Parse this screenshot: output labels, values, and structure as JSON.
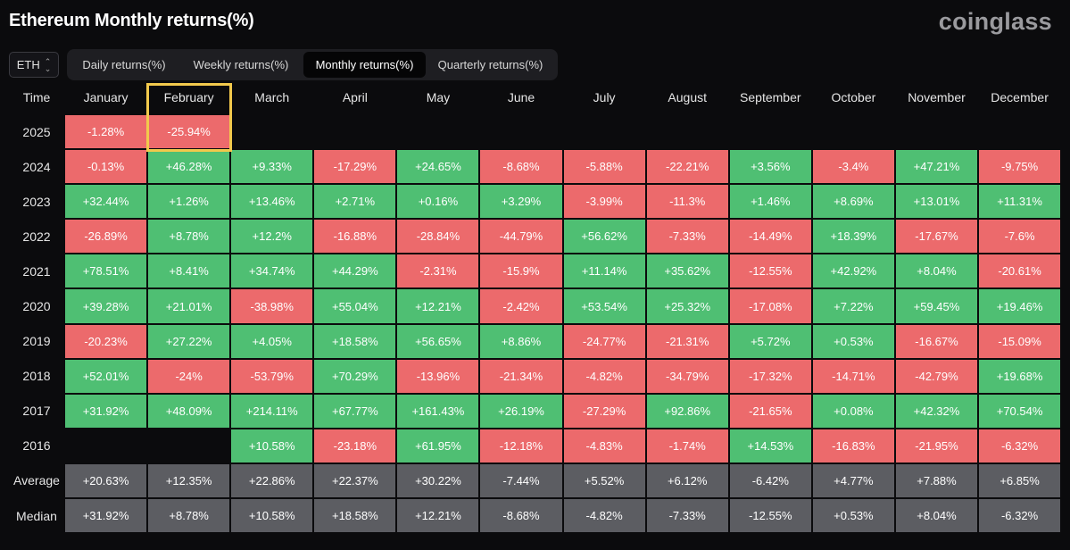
{
  "header": {
    "title": "Ethereum Monthly returns(%)",
    "brand": "coinglass"
  },
  "asset_select": {
    "value": "ETH"
  },
  "tabs": [
    {
      "label": "Daily returns(%)",
      "active": false
    },
    {
      "label": "Weekly returns(%)",
      "active": false
    },
    {
      "label": "Monthly returns(%)",
      "active": true
    },
    {
      "label": "Quarterly returns(%)",
      "active": false
    }
  ],
  "table": {
    "corner": "Time",
    "columns": [
      "January",
      "February",
      "March",
      "April",
      "May",
      "June",
      "July",
      "August",
      "September",
      "October",
      "November",
      "December"
    ],
    "rows": [
      {
        "label": "2025",
        "cells": [
          "-1.28%",
          "-25.94%",
          "",
          "",
          "",
          "",
          "",
          "",
          "",
          "",
          "",
          ""
        ]
      },
      {
        "label": "2024",
        "cells": [
          "-0.13%",
          "+46.28%",
          "+9.33%",
          "-17.29%",
          "+24.65%",
          "-8.68%",
          "-5.88%",
          "-22.21%",
          "+3.56%",
          "-3.4%",
          "+47.21%",
          "-9.75%"
        ]
      },
      {
        "label": "2023",
        "cells": [
          "+32.44%",
          "+1.26%",
          "+13.46%",
          "+2.71%",
          "+0.16%",
          "+3.29%",
          "-3.99%",
          "-11.3%",
          "+1.46%",
          "+8.69%",
          "+13.01%",
          "+11.31%"
        ]
      },
      {
        "label": "2022",
        "cells": [
          "-26.89%",
          "+8.78%",
          "+12.2%",
          "-16.88%",
          "-28.84%",
          "-44.79%",
          "+56.62%",
          "-7.33%",
          "-14.49%",
          "+18.39%",
          "-17.67%",
          "-7.6%"
        ]
      },
      {
        "label": "2021",
        "cells": [
          "+78.51%",
          "+8.41%",
          "+34.74%",
          "+44.29%",
          "-2.31%",
          "-15.9%",
          "+11.14%",
          "+35.62%",
          "-12.55%",
          "+42.92%",
          "+8.04%",
          "-20.61%"
        ]
      },
      {
        "label": "2020",
        "cells": [
          "+39.28%",
          "+21.01%",
          "-38.98%",
          "+55.04%",
          "+12.21%",
          "-2.42%",
          "+53.54%",
          "+25.32%",
          "-17.08%",
          "+7.22%",
          "+59.45%",
          "+19.46%"
        ]
      },
      {
        "label": "2019",
        "cells": [
          "-20.23%",
          "+27.22%",
          "+4.05%",
          "+18.58%",
          "+56.65%",
          "+8.86%",
          "-24.77%",
          "-21.31%",
          "+5.72%",
          "+0.53%",
          "-16.67%",
          "-15.09%"
        ]
      },
      {
        "label": "2018",
        "cells": [
          "+52.01%",
          "-24%",
          "-53.79%",
          "+70.29%",
          "-13.96%",
          "-21.34%",
          "-4.82%",
          "-34.79%",
          "-17.32%",
          "-14.71%",
          "-42.79%",
          "+19.68%"
        ]
      },
      {
        "label": "2017",
        "cells": [
          "+31.92%",
          "+48.09%",
          "+214.11%",
          "+67.77%",
          "+161.43%",
          "+26.19%",
          "-27.29%",
          "+92.86%",
          "-21.65%",
          "+0.08%",
          "+42.32%",
          "+70.54%"
        ]
      },
      {
        "label": "2016",
        "cells": [
          "",
          "",
          "+10.58%",
          "-23.18%",
          "+61.95%",
          "-12.18%",
          "-4.83%",
          "-1.74%",
          "+14.53%",
          "-16.83%",
          "-21.95%",
          "-6.32%"
        ]
      }
    ],
    "summary_rows": [
      {
        "label": "Average",
        "cells": [
          "+20.63%",
          "+12.35%",
          "+22.86%",
          "+22.37%",
          "+30.22%",
          "-7.44%",
          "+5.52%",
          "+6.12%",
          "-6.42%",
          "+4.77%",
          "+7.88%",
          "+6.85%"
        ]
      },
      {
        "label": "Median",
        "cells": [
          "+31.92%",
          "+8.78%",
          "+10.58%",
          "+18.58%",
          "+12.21%",
          "-8.68%",
          "-4.82%",
          "-7.33%",
          "-12.55%",
          "+0.53%",
          "+8.04%",
          "-6.32%"
        ]
      }
    ],
    "highlighted_column": "February"
  },
  "colors": {
    "positive": "#4fbf73",
    "negative": "#ec6a6c",
    "summary": "#5c5d62",
    "highlight": "#f2c94c",
    "background": "#0b0b0d"
  }
}
